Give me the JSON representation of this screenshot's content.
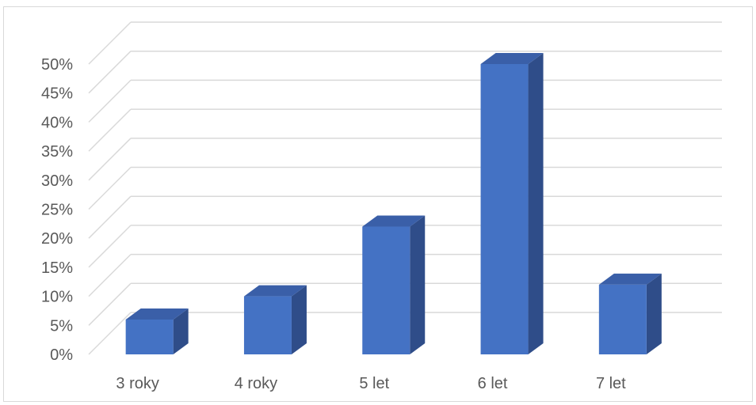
{
  "chart_data": {
    "type": "bar",
    "style": "3d-column",
    "title": "",
    "xlabel": "",
    "ylabel": "",
    "categories": [
      "3 roky",
      "4 roky",
      "5 let",
      "6 let",
      "7 let"
    ],
    "values": [
      6,
      10,
      22,
      50,
      12
    ],
    "ylim": [
      0,
      50
    ],
    "ytick_step": 5,
    "ytick_suffix": "%",
    "grid": true,
    "legend": "none",
    "colors": {
      "bar_front": "#4472c4",
      "bar_side": "#2f4d89",
      "bar_top": "#3a5fa8",
      "grid": "#d9d9d9",
      "text": "#595959"
    }
  }
}
